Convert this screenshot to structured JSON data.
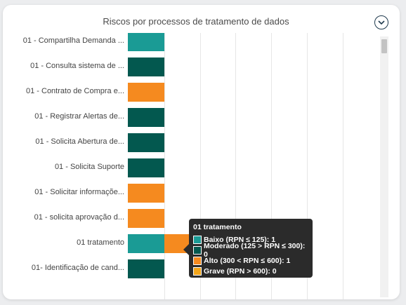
{
  "widget": {
    "title": "Riscos por processos de tratamento de dados"
  },
  "colors": {
    "baixo": "#1a9b95",
    "moderado": "#03584f",
    "alto": "#f58a1f",
    "grave": "#f2a51a"
  },
  "chart_data": {
    "type": "bar",
    "orientation": "horizontal",
    "stacked": true,
    "categories": [
      "01 - Compartilha Demanda ...",
      "01 - Consulta sistema de ...",
      "01 - Contrato de Compra e...",
      "01 - Registrar Alertas de...",
      "01 - Solicita Abertura de...",
      "01 - Solicita Suporte",
      "01 - Solicitar informaçõe...",
      "01 - solicita aprovação d...",
      "01 tratamento",
      "01- Identificação de cand..."
    ],
    "series": [
      {
        "name": "Baixo (RPN ≤ 125)",
        "values": [
          1,
          0,
          0,
          0,
          0,
          0,
          0,
          0,
          1,
          0
        ]
      },
      {
        "name": "Moderado (125 > RPN ≤ 300)",
        "values": [
          0,
          1,
          0,
          1,
          1,
          1,
          0,
          0,
          0,
          1
        ]
      },
      {
        "name": "Alto (300 < RPN ≤ 600)",
        "values": [
          0,
          0,
          1,
          0,
          0,
          0,
          1,
          1,
          1,
          0
        ]
      },
      {
        "name": "Grave (RPN > 600)",
        "values": [
          0,
          0,
          0,
          0,
          0,
          0,
          0,
          0,
          0,
          0
        ]
      }
    ]
  },
  "tooltip": {
    "title": "01 tratamento",
    "rows": [
      {
        "text": "Baixo (RPN ≤ 125): 1",
        "color": "#1a9b95"
      },
      {
        "text": "Moderado (125 > RPN ≤ 300): 0",
        "color": "#03584f"
      },
      {
        "text": "Alto (300 < RPN ≤ 600): 1",
        "color": "#f58a1f"
      },
      {
        "text": "Grave (RPN > 600): 0",
        "color": "#f2a51a"
      }
    ]
  }
}
